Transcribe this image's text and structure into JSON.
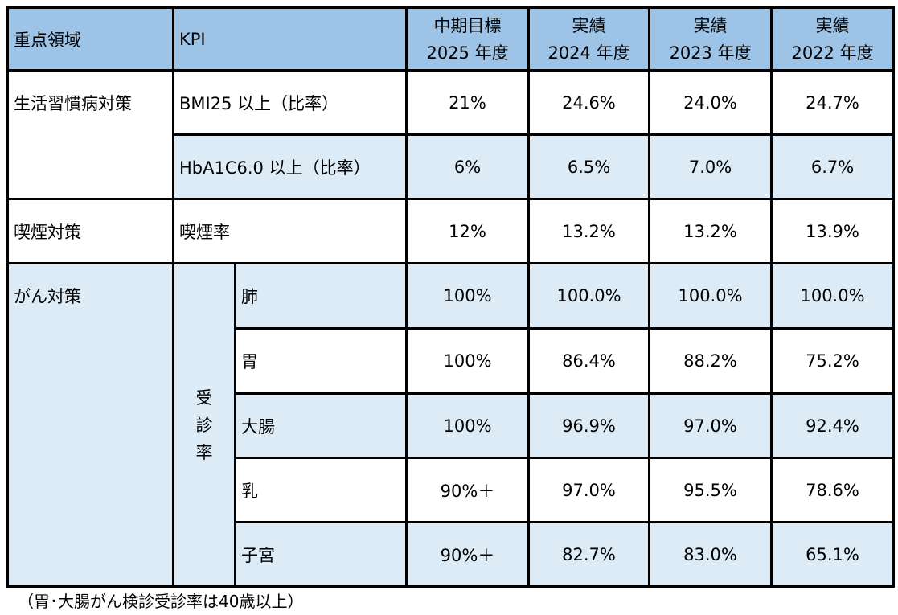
{
  "headers": {
    "area": "重点領域",
    "kpi": "KPI",
    "cols": [
      [
        "中期目標",
        "2025 年度"
      ],
      [
        "実績",
        "2024 年度"
      ],
      [
        "実績",
        "2023 年度"
      ],
      [
        "実績",
        "2022 年度"
      ]
    ]
  },
  "lifestyle": {
    "area": "生活習慣病対策",
    "rows": [
      {
        "kpi": "BMI25 以上（比率）",
        "values": [
          "21%",
          "24.6%",
          "24.0%",
          "24.7%"
        ]
      },
      {
        "kpi": "HbA1C6.0 以上（比率）",
        "values": [
          "6%",
          "6.5%",
          "7.0%",
          "6.7%"
        ]
      }
    ]
  },
  "smoking": {
    "area": "喫煙対策",
    "kpi": "喫煙率",
    "values": [
      "12%",
      "13.2%",
      "13.2%",
      "13.9%"
    ]
  },
  "cancer": {
    "area": "がん対策",
    "group": [
      "受",
      "診",
      "率"
    ],
    "rows": [
      {
        "kpi": "肺",
        "values": [
          "100%",
          "100.0%",
          "100.0%",
          "100.0%"
        ]
      },
      {
        "kpi": "胃",
        "values": [
          "100%",
          "86.4%",
          "88.2%",
          "75.2%"
        ]
      },
      {
        "kpi": "大腸",
        "values": [
          "100%",
          "96.9%",
          "97.0%",
          "92.4%"
        ]
      },
      {
        "kpi": "乳",
        "values": [
          "90%＋",
          "97.0%",
          "95.5%",
          "78.6%"
        ]
      },
      {
        "kpi": "子宮",
        "values": [
          "90%＋",
          "82.7%",
          "83.0%",
          "65.1%"
        ]
      }
    ]
  },
  "caption": "（胃･大腸がん検診受診率は40歳以上）",
  "colors": {
    "header": "#9dc3e6",
    "light": "#ddebf7"
  }
}
